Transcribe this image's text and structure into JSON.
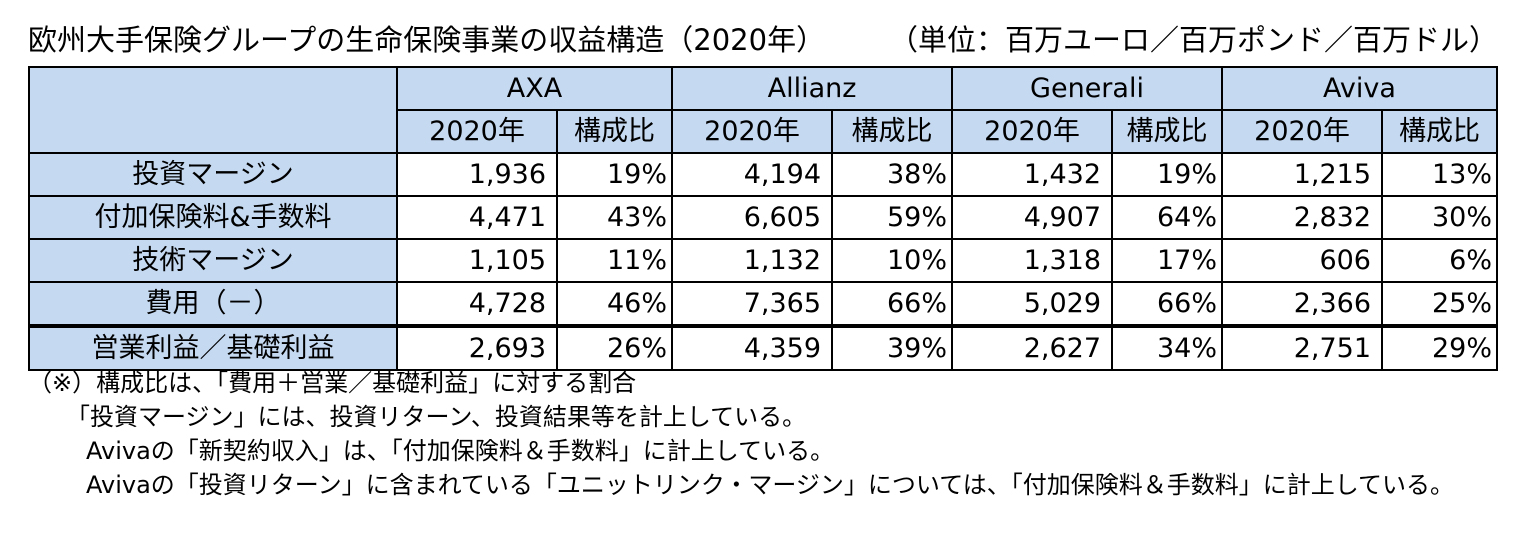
{
  "title": "欧州大手保険グループの生命保険事業の収益構造（2020年）",
  "unit": "（単位：百万ユーロ／百万ポンド／百万ドル）",
  "table": {
    "companies": [
      "AXA",
      "Allianz",
      "Generali",
      "Aviva"
    ],
    "subheaders": {
      "year": "2020年",
      "ratio": "構成比"
    },
    "rows": [
      {
        "label": "投資マージン",
        "values": [
          "1,936",
          "19%",
          "4,194",
          "38%",
          "1,432",
          "19%",
          "1,215",
          "13%"
        ]
      },
      {
        "label": "付加保険料&手数料",
        "values": [
          "4,471",
          "43%",
          "6,605",
          "59%",
          "4,907",
          "64%",
          "2,832",
          "30%"
        ]
      },
      {
        "label": "技術マージン",
        "values": [
          "1,105",
          "11%",
          "1,132",
          "10%",
          "1,318",
          "17%",
          "606",
          "6%"
        ]
      },
      {
        "label": "費用（－）",
        "values": [
          "4,728",
          "46%",
          "7,365",
          "66%",
          "5,029",
          "66%",
          "2,366",
          "25%"
        ]
      },
      {
        "label": "営業利益／基礎利益",
        "values": [
          "2,693",
          "26%",
          "4,359",
          "39%",
          "2,627",
          "34%",
          "2,751",
          "29%"
        ]
      }
    ]
  },
  "notes": [
    "（※）構成比は、「費用＋営業／基礎利益」に対する割合",
    "「投資マージン」には、投資リターン、投資結果等を計上している。",
    "Avivaの「新契約収入」は、「付加保険料＆手数料」に計上している。",
    "Avivaの「投資リターン」に含まれている「ユニットリンク・マージン」については、「付加保険料＆手数料」に計上している。"
  ]
}
